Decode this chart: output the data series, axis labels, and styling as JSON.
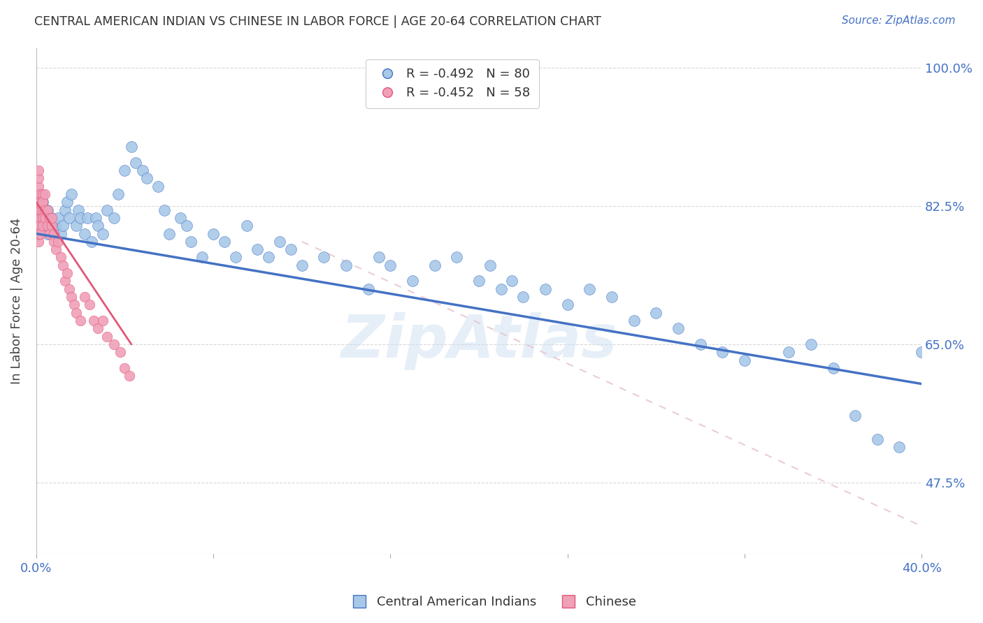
{
  "title": "CENTRAL AMERICAN INDIAN VS CHINESE IN LABOR FORCE | AGE 20-64 CORRELATION CHART",
  "source": "Source: ZipAtlas.com",
  "ylabel": "In Labor Force | Age 20-64",
  "legend_blue_r": "R = -0.492",
  "legend_blue_n": "N = 80",
  "legend_pink_r": "R = -0.452",
  "legend_pink_n": "N = 58",
  "legend_label_blue": "Central American Indians",
  "legend_label_pink": "Chinese",
  "xlim": [
    0.0,
    0.4
  ],
  "ylim": [
    0.385,
    1.025
  ],
  "ytick_values": [
    0.475,
    0.65,
    0.825,
    1.0
  ],
  "ytick_labels": [
    "47.5%",
    "65.0%",
    "82.5%",
    "100.0%"
  ],
  "color_blue": "#a8c8e8",
  "color_pink": "#f0a0b8",
  "color_trend_blue": "#4472c4",
  "color_trend_pink": "#e05878",
  "color_trend_diag": "#e8c8d0",
  "background": "#ffffff",
  "grid_color": "#d0d0d0",
  "axis_color": "#4472c4",
  "watermark": "ZipAtlas",
  "blue_points": [
    [
      0.001,
      0.79
    ],
    [
      0.002,
      0.81
    ],
    [
      0.003,
      0.83
    ],
    [
      0.004,
      0.8
    ],
    [
      0.005,
      0.82
    ],
    [
      0.005,
      0.79
    ],
    [
      0.006,
      0.8
    ],
    [
      0.007,
      0.81
    ],
    [
      0.008,
      0.79
    ],
    [
      0.009,
      0.8
    ],
    [
      0.01,
      0.81
    ],
    [
      0.011,
      0.79
    ],
    [
      0.012,
      0.8
    ],
    [
      0.013,
      0.82
    ],
    [
      0.014,
      0.83
    ],
    [
      0.015,
      0.81
    ],
    [
      0.016,
      0.84
    ],
    [
      0.018,
      0.8
    ],
    [
      0.019,
      0.82
    ],
    [
      0.02,
      0.81
    ],
    [
      0.022,
      0.79
    ],
    [
      0.023,
      0.81
    ],
    [
      0.025,
      0.78
    ],
    [
      0.027,
      0.81
    ],
    [
      0.028,
      0.8
    ],
    [
      0.03,
      0.79
    ],
    [
      0.032,
      0.82
    ],
    [
      0.035,
      0.81
    ],
    [
      0.037,
      0.84
    ],
    [
      0.04,
      0.87
    ],
    [
      0.043,
      0.9
    ],
    [
      0.045,
      0.88
    ],
    [
      0.048,
      0.87
    ],
    [
      0.05,
      0.86
    ],
    [
      0.055,
      0.85
    ],
    [
      0.058,
      0.82
    ],
    [
      0.06,
      0.79
    ],
    [
      0.065,
      0.81
    ],
    [
      0.068,
      0.8
    ],
    [
      0.07,
      0.78
    ],
    [
      0.075,
      0.76
    ],
    [
      0.08,
      0.79
    ],
    [
      0.085,
      0.78
    ],
    [
      0.09,
      0.76
    ],
    [
      0.095,
      0.8
    ],
    [
      0.1,
      0.77
    ],
    [
      0.105,
      0.76
    ],
    [
      0.11,
      0.78
    ],
    [
      0.115,
      0.77
    ],
    [
      0.12,
      0.75
    ],
    [
      0.13,
      0.76
    ],
    [
      0.14,
      0.75
    ],
    [
      0.15,
      0.72
    ],
    [
      0.155,
      0.76
    ],
    [
      0.16,
      0.75
    ],
    [
      0.17,
      0.73
    ],
    [
      0.18,
      0.75
    ],
    [
      0.19,
      0.76
    ],
    [
      0.2,
      0.73
    ],
    [
      0.205,
      0.75
    ],
    [
      0.21,
      0.72
    ],
    [
      0.215,
      0.73
    ],
    [
      0.22,
      0.71
    ],
    [
      0.23,
      0.72
    ],
    [
      0.24,
      0.7
    ],
    [
      0.25,
      0.72
    ],
    [
      0.26,
      0.71
    ],
    [
      0.27,
      0.68
    ],
    [
      0.28,
      0.69
    ],
    [
      0.29,
      0.67
    ],
    [
      0.3,
      0.65
    ],
    [
      0.31,
      0.64
    ],
    [
      0.32,
      0.63
    ],
    [
      0.34,
      0.64
    ],
    [
      0.35,
      0.65
    ],
    [
      0.36,
      0.62
    ],
    [
      0.37,
      0.56
    ],
    [
      0.38,
      0.53
    ],
    [
      0.39,
      0.52
    ],
    [
      0.4,
      0.64
    ]
  ],
  "pink_points": [
    [
      0.001,
      0.84
    ],
    [
      0.001,
      0.82
    ],
    [
      0.001,
      0.8
    ],
    [
      0.001,
      0.81
    ],
    [
      0.001,
      0.83
    ],
    [
      0.001,
      0.85
    ],
    [
      0.001,
      0.86
    ],
    [
      0.001,
      0.87
    ],
    [
      0.001,
      0.82
    ],
    [
      0.001,
      0.8
    ],
    [
      0.001,
      0.78
    ],
    [
      0.001,
      0.79
    ],
    [
      0.001,
      0.83
    ],
    [
      0.002,
      0.84
    ],
    [
      0.002,
      0.82
    ],
    [
      0.002,
      0.81
    ],
    [
      0.002,
      0.83
    ],
    [
      0.002,
      0.82
    ],
    [
      0.002,
      0.8
    ],
    [
      0.002,
      0.79
    ],
    [
      0.003,
      0.83
    ],
    [
      0.003,
      0.82
    ],
    [
      0.003,
      0.81
    ],
    [
      0.003,
      0.8
    ],
    [
      0.003,
      0.84
    ],
    [
      0.003,
      0.83
    ],
    [
      0.004,
      0.84
    ],
    [
      0.004,
      0.82
    ],
    [
      0.004,
      0.81
    ],
    [
      0.005,
      0.82
    ],
    [
      0.005,
      0.8
    ],
    [
      0.006,
      0.81
    ],
    [
      0.006,
      0.79
    ],
    [
      0.007,
      0.8
    ],
    [
      0.007,
      0.81
    ],
    [
      0.008,
      0.79
    ],
    [
      0.008,
      0.78
    ],
    [
      0.009,
      0.77
    ],
    [
      0.01,
      0.78
    ],
    [
      0.011,
      0.76
    ],
    [
      0.012,
      0.75
    ],
    [
      0.013,
      0.73
    ],
    [
      0.014,
      0.74
    ],
    [
      0.015,
      0.72
    ],
    [
      0.016,
      0.71
    ],
    [
      0.017,
      0.7
    ],
    [
      0.018,
      0.69
    ],
    [
      0.02,
      0.68
    ],
    [
      0.022,
      0.71
    ],
    [
      0.024,
      0.7
    ],
    [
      0.026,
      0.68
    ],
    [
      0.028,
      0.67
    ],
    [
      0.03,
      0.68
    ],
    [
      0.032,
      0.66
    ],
    [
      0.035,
      0.65
    ],
    [
      0.038,
      0.64
    ],
    [
      0.04,
      0.62
    ],
    [
      0.042,
      0.61
    ]
  ],
  "blue_trend": [
    0.0,
    0.4
  ],
  "blue_trend_y": [
    0.79,
    0.6
  ],
  "pink_trend": [
    0.0,
    0.043
  ],
  "pink_trend_y": [
    0.83,
    0.65
  ],
  "diag_line_x": [
    0.12,
    0.4
  ],
  "diag_line_y": [
    0.78,
    0.42
  ]
}
